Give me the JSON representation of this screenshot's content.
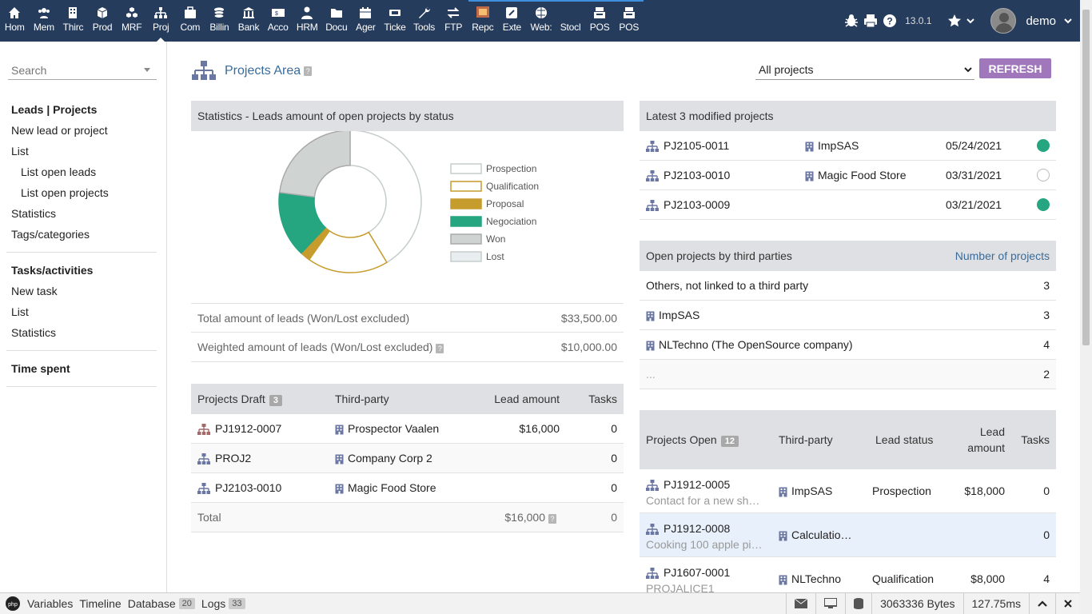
{
  "topmenu": [
    {
      "label": "Hom",
      "icon": "home-icon"
    },
    {
      "label": "Mem",
      "icon": "members-icon"
    },
    {
      "label": "Thirc",
      "icon": "building-icon"
    },
    {
      "label": "Prod",
      "icon": "cube-icon"
    },
    {
      "label": "MRF",
      "icon": "cubes-icon"
    },
    {
      "label": "Proj",
      "icon": "project-icon",
      "active": true
    },
    {
      "label": "Com",
      "icon": "suitcase-icon"
    },
    {
      "label": "Billin",
      "icon": "coins-icon"
    },
    {
      "label": "Bank",
      "icon": "bank-icon"
    },
    {
      "label": "Acco",
      "icon": "accounting-icon"
    },
    {
      "label": "HRM",
      "icon": "user-tie-icon"
    },
    {
      "label": "Docu",
      "icon": "folder-icon"
    },
    {
      "label": "Ager",
      "icon": "calendar-icon"
    },
    {
      "label": "Ticke",
      "icon": "ticket-icon"
    },
    {
      "label": "Tools",
      "icon": "wrench-icon"
    },
    {
      "label": "FTP",
      "icon": "transfer-icon"
    },
    {
      "label": "Repc",
      "icon": "report-icon",
      "blueline": true
    },
    {
      "label": "Exte",
      "icon": "external-icon",
      "blueline": true
    },
    {
      "label": "Web:",
      "icon": "globe-icon",
      "blueline": true
    },
    {
      "label": "Stocl",
      "icon": "stock-icon",
      "blueline": true
    },
    {
      "label": "POS",
      "icon": "cashdesk-icon",
      "blueline": true
    },
    {
      "label": "POS",
      "icon": "cashdesk2-icon",
      "blueline": true
    }
  ],
  "topright": {
    "version": "13.0.1",
    "username": "demo"
  },
  "leftmenu": {
    "search_placeholder": "Search",
    "section1_title": "Leads | Projects",
    "section1_items": [
      "New lead or project",
      "List",
      "List open leads",
      "List open projects",
      "Statistics",
      "Tags/categories"
    ],
    "section2_title": "Tasks/activities",
    "section2_items": [
      "New task",
      "List",
      "Statistics"
    ],
    "section3_title": "Time spent"
  },
  "page": {
    "title": "Projects Area",
    "select_value": "All projects",
    "refresh_label": "REFRESH"
  },
  "stats": {
    "title": "Statistics - Leads amount of open projects by status",
    "total_label": "Total amount of leads (Won/Lost excluded)",
    "total_value": "$33,500.00",
    "weighted_label": "Weighted amount of leads (Won/Lost excluded)",
    "weighted_value": "$10,000.00"
  },
  "chart_data": {
    "type": "pie",
    "categories": [
      "Prospection",
      "Qualification",
      "Proposal",
      "Negociation",
      "Won",
      "Lost"
    ],
    "values": [
      18000,
      8000,
      1000,
      6500,
      10000,
      0
    ],
    "colors": [
      "#ffffff",
      "#ffffff",
      "#c69c2c",
      "#25a580",
      "#cfd4d3",
      "#e8edef"
    ],
    "strokes": [
      "#c5cdcc",
      "#c69c2c",
      "#c69c2c",
      "#25a580",
      "#aaaaaa",
      "#c5cdcc"
    ]
  },
  "draft": {
    "header": {
      "project": "Projects Draft",
      "badge": "3",
      "third": "Third-party",
      "amount": "Lead amount",
      "tasks": "Tasks"
    },
    "rows": [
      {
        "ref": "PJ1912-0007",
        "third": "Prospector Vaalen",
        "amount": "$16,000",
        "tasks": "0"
      },
      {
        "ref": "PROJ2",
        "third": "Company Corp 2",
        "amount": "",
        "tasks": "0"
      },
      {
        "ref": "PJ2103-0010",
        "third": "Magic Food Store",
        "amount": "",
        "tasks": "0"
      }
    ],
    "total_label": "Total",
    "total_amount": "$16,000",
    "total_tasks": "0"
  },
  "latest": {
    "title": "Latest 3 modified projects",
    "rows": [
      {
        "ref": "PJ2105-0011",
        "third": "ImpSAS",
        "date": "05/24/2021",
        "status": "full"
      },
      {
        "ref": "PJ2103-0010",
        "third": "Magic Food Store",
        "date": "03/31/2021",
        "status": "empty"
      },
      {
        "ref": "PJ2103-0009",
        "third": "",
        "date": "03/21/2021",
        "status": "full"
      }
    ]
  },
  "bythird": {
    "title": "Open projects by third parties",
    "count_header": "Number of projects",
    "rows": [
      {
        "name": "Others, not linked to a third party",
        "count": "3",
        "icon": false
      },
      {
        "name": "ImpSAS",
        "count": "3",
        "icon": true
      },
      {
        "name": "NLTechno (The OpenSource company)",
        "count": "4",
        "icon": true
      },
      {
        "name": "...",
        "count": "2",
        "icon": false
      }
    ]
  },
  "open": {
    "header": {
      "project": "Projects Open",
      "badge": "12",
      "third": "Third-party",
      "status": "Lead status",
      "amount1": "Lead",
      "amount2": "amount",
      "tasks": "Tasks"
    },
    "rows": [
      {
        "ref": "PJ1912-0005",
        "desc": "Contact for a new sh…",
        "third": "ImpSAS",
        "status": "Prospection",
        "amount": "$18,000",
        "tasks": "0"
      },
      {
        "ref": "PJ1912-0008",
        "desc": "Cooking 100 apple pi…",
        "third": "Calculatio…",
        "status": "",
        "amount": "",
        "tasks": "0"
      },
      {
        "ref": "PJ1607-0001",
        "desc": "PROJALICE1",
        "third": "NLTechno",
        "status": "Qualification",
        "amount": "$8,000",
        "tasks": "4"
      }
    ]
  },
  "debugbar": {
    "items": [
      {
        "label": "Variables"
      },
      {
        "label": "Timeline"
      },
      {
        "label": "Database",
        "badge": "20"
      },
      {
        "label": "Logs",
        "badge": "33"
      }
    ],
    "bytes": "3063336 Bytes",
    "time": "127.75ms"
  }
}
